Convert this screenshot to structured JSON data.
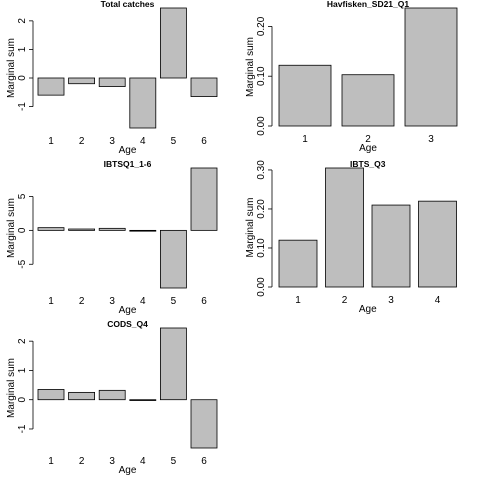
{
  "chart_data": [
    {
      "type": "bar",
      "title": "Total catches",
      "xlabel": "Age",
      "ylabel": "Marginal sum",
      "categories": [
        "1",
        "2",
        "3",
        "4",
        "5",
        "6"
      ],
      "values": [
        -0.6,
        -0.2,
        -0.3,
        -1.75,
        2.45,
        -0.65
      ],
      "ylim": [
        -1.75,
        2.45
      ],
      "yticks": [
        -1,
        0,
        1,
        2
      ],
      "ytick_labels": [
        "-1",
        "0",
        "1",
        "2"
      ]
    },
    {
      "type": "bar",
      "title": "Havfisken_SD21_Q1",
      "xlabel": "Age",
      "ylabel": "Marginal sum",
      "categories": [
        "1",
        "2",
        "3"
      ],
      "values": [
        0.122,
        0.103,
        0.237
      ],
      "ylim": [
        0,
        0.237
      ],
      "yticks": [
        0,
        0.1,
        0.2
      ],
      "ytick_labels": [
        "0.00",
        "0.10",
        "0.20"
      ]
    },
    {
      "type": "bar",
      "title": "IBTSQ1_1-6",
      "xlabel": "Age",
      "ylabel": "Marginal sum",
      "categories": [
        "1",
        "2",
        "3",
        "4",
        "5",
        "6"
      ],
      "values": [
        0.4,
        0.2,
        0.3,
        -0.1,
        -8.5,
        9.2
      ],
      "ylim": [
        -8.5,
        9.2
      ],
      "yticks": [
        -5,
        0,
        5
      ],
      "ytick_labels": [
        "-5",
        "0",
        "5"
      ]
    },
    {
      "type": "bar",
      "title": "IBTS_Q3",
      "xlabel": "Age",
      "ylabel": "Marginal sum",
      "categories": [
        "1",
        "2",
        "3",
        "4"
      ],
      "values": [
        0.12,
        0.305,
        0.21,
        0.22
      ],
      "ylim": [
        0,
        0.305
      ],
      "yticks": [
        0,
        0.1,
        0.2,
        0.3
      ],
      "ytick_labels": [
        "0.00",
        "0.10",
        "0.20",
        "0.30"
      ]
    },
    {
      "type": "bar",
      "title": "CODS_Q4",
      "xlabel": "Age",
      "ylabel": "Marginal sum",
      "categories": [
        "1",
        "2",
        "3",
        "4",
        "5",
        "6"
      ],
      "values": [
        0.35,
        0.25,
        0.32,
        0.0,
        2.45,
        -1.65
      ],
      "ylim": [
        -1.65,
        2.45
      ],
      "yticks": [
        -1,
        0,
        1,
        2
      ],
      "ytick_labels": [
        "-1",
        "0",
        "1",
        "2"
      ]
    }
  ]
}
